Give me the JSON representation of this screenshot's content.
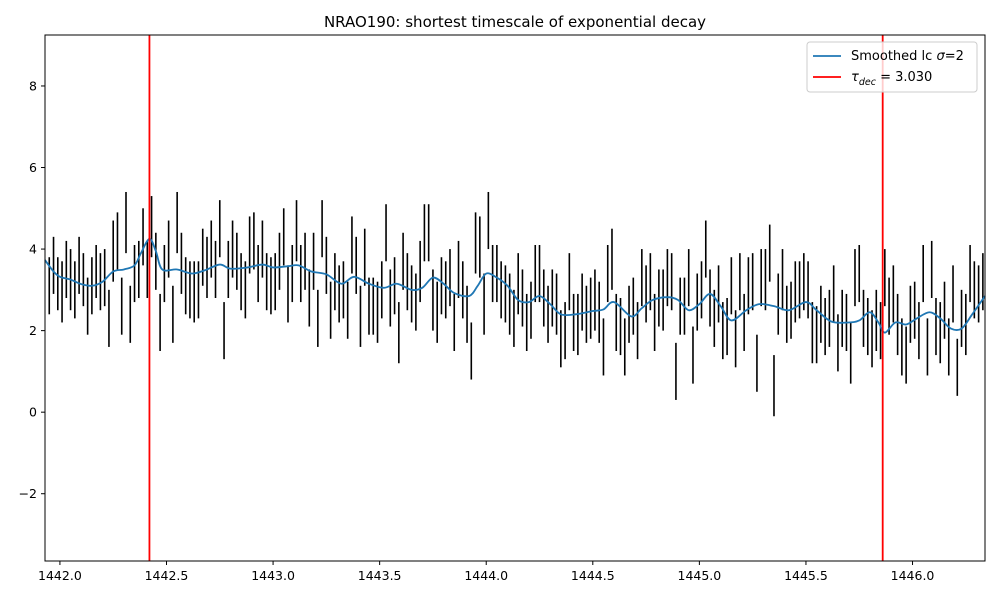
{
  "chart_data": {
    "type": "line",
    "title": "NRAO190: shortest timescale of exponential decay",
    "xlabel": "",
    "ylabel": "",
    "xlim": [
      1441.93,
      1446.34
    ],
    "ylim": [
      -3.65,
      9.25
    ],
    "xticks": [
      1442.0,
      1442.5,
      1443.0,
      1443.5,
      1444.0,
      1444.5,
      1445.0,
      1445.5,
      1446.0
    ],
    "xtick_labels": [
      "1442.0",
      "1442.5",
      "1443.0",
      "1443.5",
      "1444.0",
      "1444.5",
      "1445.0",
      "1445.5",
      "1446.0"
    ],
    "yticks": [
      -2,
      0,
      2,
      4,
      6,
      8
    ],
    "ytick_labels": [
      "−2",
      "0",
      "2",
      "4",
      "6",
      "8"
    ],
    "grid": false,
    "legend_position": "top-right",
    "colors": {
      "smoothed": "#1f77b4",
      "vlines": "#ff0000",
      "errorbars": "#000000"
    },
    "smoothed_series": {
      "name_prefix": "Smoothed lc ",
      "name_symbol": "σ",
      "name_suffix": "=2",
      "points": [
        [
          1441.93,
          3.73
        ],
        [
          1441.97,
          3.45
        ],
        [
          1442.0,
          3.32
        ],
        [
          1442.05,
          3.25
        ],
        [
          1442.1,
          3.14
        ],
        [
          1442.15,
          3.1
        ],
        [
          1442.2,
          3.2
        ],
        [
          1442.25,
          3.45
        ],
        [
          1442.3,
          3.5
        ],
        [
          1442.35,
          3.6
        ],
        [
          1442.38,
          3.9
        ],
        [
          1442.42,
          4.25
        ],
        [
          1442.45,
          3.95
        ],
        [
          1442.48,
          3.5
        ],
        [
          1442.55,
          3.5
        ],
        [
          1442.62,
          3.4
        ],
        [
          1442.68,
          3.48
        ],
        [
          1442.75,
          3.62
        ],
        [
          1442.8,
          3.52
        ],
        [
          1442.88,
          3.55
        ],
        [
          1442.95,
          3.62
        ],
        [
          1443.0,
          3.55
        ],
        [
          1443.07,
          3.58
        ],
        [
          1443.12,
          3.6
        ],
        [
          1443.18,
          3.45
        ],
        [
          1443.25,
          3.38
        ],
        [
          1443.32,
          3.15
        ],
        [
          1443.38,
          3.32
        ],
        [
          1443.45,
          3.15
        ],
        [
          1443.52,
          3.05
        ],
        [
          1443.58,
          3.15
        ],
        [
          1443.65,
          3.0
        ],
        [
          1443.7,
          3.05
        ],
        [
          1443.75,
          3.3
        ],
        [
          1443.8,
          3.15
        ],
        [
          1443.85,
          2.92
        ],
        [
          1443.92,
          2.85
        ],
        [
          1443.96,
          3.1
        ],
        [
          1444.0,
          3.4
        ],
        [
          1444.05,
          3.3
        ],
        [
          1444.1,
          3.1
        ],
        [
          1444.15,
          2.75
        ],
        [
          1444.2,
          2.7
        ],
        [
          1444.25,
          2.85
        ],
        [
          1444.3,
          2.65
        ],
        [
          1444.35,
          2.4
        ],
        [
          1444.42,
          2.4
        ],
        [
          1444.5,
          2.48
        ],
        [
          1444.55,
          2.52
        ],
        [
          1444.6,
          2.7
        ],
        [
          1444.68,
          2.35
        ],
        [
          1444.73,
          2.55
        ],
        [
          1444.78,
          2.75
        ],
        [
          1444.85,
          2.82
        ],
        [
          1444.9,
          2.75
        ],
        [
          1444.95,
          2.5
        ],
        [
          1445.0,
          2.65
        ],
        [
          1445.05,
          2.9
        ],
        [
          1445.1,
          2.6
        ],
        [
          1445.15,
          2.25
        ],
        [
          1445.22,
          2.5
        ],
        [
          1445.28,
          2.65
        ],
        [
          1445.35,
          2.6
        ],
        [
          1445.42,
          2.5
        ],
        [
          1445.5,
          2.7
        ],
        [
          1445.55,
          2.5
        ],
        [
          1445.62,
          2.22
        ],
        [
          1445.7,
          2.2
        ],
        [
          1445.75,
          2.25
        ],
        [
          1445.8,
          2.45
        ],
        [
          1445.84,
          2.2
        ],
        [
          1445.87,
          1.95
        ],
        [
          1445.92,
          2.2
        ],
        [
          1445.97,
          2.15
        ],
        [
          1446.02,
          2.3
        ],
        [
          1446.08,
          2.45
        ],
        [
          1446.13,
          2.3
        ],
        [
          1446.18,
          2.05
        ],
        [
          1446.23,
          2.05
        ],
        [
          1446.28,
          2.4
        ],
        [
          1446.34,
          2.85
        ]
      ]
    },
    "vertical_lines": {
      "name_prefix": "τ",
      "name_sub": "dec",
      "name_suffix": " = 3.030",
      "x": [
        1442.42,
        1445.86
      ]
    },
    "errorbars": [
      [
        1441.95,
        2.4,
        3.8
      ],
      [
        1441.97,
        2.9,
        4.3
      ],
      [
        1441.99,
        2.5,
        3.8
      ],
      [
        1442.01,
        2.2,
        3.7
      ],
      [
        1442.03,
        2.8,
        4.2
      ],
      [
        1442.05,
        2.5,
        4.0
      ],
      [
        1442.07,
        2.3,
        3.7
      ],
      [
        1442.09,
        2.9,
        4.3
      ],
      [
        1442.11,
        2.6,
        3.9
      ],
      [
        1442.13,
        1.9,
        3.3
      ],
      [
        1442.15,
        2.4,
        3.8
      ],
      [
        1442.17,
        2.8,
        4.1
      ],
      [
        1442.19,
        2.5,
        3.9
      ],
      [
        1442.21,
        2.6,
        4.0
      ],
      [
        1442.23,
        1.6,
        3.0
      ],
      [
        1442.25,
        3.2,
        4.7
      ],
      [
        1442.27,
        3.5,
        4.9
      ],
      [
        1442.29,
        1.9,
        3.3
      ],
      [
        1442.31,
        3.9,
        5.4
      ],
      [
        1442.33,
        1.7,
        3.1
      ],
      [
        1442.35,
        2.7,
        4.1
      ],
      [
        1442.37,
        2.8,
        4.2
      ],
      [
        1442.39,
        3.6,
        5.0
      ],
      [
        1442.41,
        2.8,
        4.2
      ],
      [
        1442.43,
        3.8,
        5.3
      ],
      [
        1442.45,
        3.0,
        4.4
      ],
      [
        1442.47,
        1.5,
        2.9
      ],
      [
        1442.49,
        2.7,
        4.1
      ],
      [
        1442.51,
        3.3,
        4.7
      ],
      [
        1442.53,
        1.7,
        3.1
      ],
      [
        1442.55,
        3.9,
        5.4
      ],
      [
        1442.57,
        2.9,
        4.4
      ],
      [
        1442.59,
        2.4,
        3.8
      ],
      [
        1442.61,
        2.3,
        3.7
      ],
      [
        1442.63,
        2.2,
        3.7
      ],
      [
        1442.65,
        2.3,
        3.7
      ],
      [
        1442.67,
        3.1,
        4.5
      ],
      [
        1442.69,
        2.8,
        4.3
      ],
      [
        1442.71,
        3.3,
        4.7
      ],
      [
        1442.73,
        2.8,
        4.2
      ],
      [
        1442.75,
        3.8,
        5.2
      ],
      [
        1442.77,
        1.3,
        2.7
      ],
      [
        1442.79,
        2.8,
        4.2
      ],
      [
        1442.81,
        3.3,
        4.7
      ],
      [
        1442.83,
        3.0,
        4.4
      ],
      [
        1442.85,
        2.5,
        3.9
      ],
      [
        1442.87,
        2.3,
        3.7
      ],
      [
        1442.89,
        3.4,
        4.8
      ],
      [
        1442.91,
        3.5,
        4.9
      ],
      [
        1442.93,
        2.7,
        4.1
      ],
      [
        1442.95,
        3.3,
        4.7
      ],
      [
        1442.97,
        2.5,
        3.9
      ],
      [
        1442.99,
        2.4,
        3.8
      ],
      [
        1443.01,
        2.5,
        3.9
      ],
      [
        1443.03,
        3.0,
        4.4
      ],
      [
        1443.05,
        3.6,
        5.0
      ],
      [
        1443.07,
        2.2,
        3.6
      ],
      [
        1443.09,
        2.7,
        4.1
      ],
      [
        1443.11,
        3.7,
        5.2
      ],
      [
        1443.13,
        2.7,
        4.1
      ],
      [
        1443.15,
        3.0,
        4.4
      ],
      [
        1443.17,
        2.1,
        3.5
      ],
      [
        1443.19,
        3.0,
        4.4
      ],
      [
        1443.21,
        1.6,
        3.0
      ],
      [
        1443.23,
        3.8,
        5.2
      ],
      [
        1443.25,
        2.9,
        4.3
      ],
      [
        1443.27,
        1.8,
        3.2
      ],
      [
        1443.29,
        2.5,
        3.9
      ],
      [
        1443.31,
        2.2,
        3.6
      ],
      [
        1443.33,
        2.3,
        3.7
      ],
      [
        1443.35,
        1.8,
        3.2
      ],
      [
        1443.37,
        3.4,
        4.8
      ],
      [
        1443.39,
        2.9,
        4.3
      ],
      [
        1443.41,
        1.6,
        3.1
      ],
      [
        1443.43,
        3.1,
        4.5
      ],
      [
        1443.45,
        1.9,
        3.3
      ],
      [
        1443.47,
        1.9,
        3.3
      ],
      [
        1443.49,
        1.7,
        3.2
      ],
      [
        1443.51,
        2.3,
        3.7
      ],
      [
        1443.53,
        3.7,
        5.1
      ],
      [
        1443.55,
        2.1,
        3.5
      ],
      [
        1443.57,
        2.4,
        3.8
      ],
      [
        1443.59,
        1.2,
        2.7
      ],
      [
        1443.61,
        3.0,
        4.4
      ],
      [
        1443.63,
        2.5,
        3.9
      ],
      [
        1443.65,
        2.2,
        3.6
      ],
      [
        1443.67,
        2.0,
        3.4
      ],
      [
        1443.69,
        2.7,
        4.2
      ],
      [
        1443.71,
        3.7,
        5.1
      ],
      [
        1443.73,
        3.7,
        5.1
      ],
      [
        1443.75,
        2.0,
        3.5
      ],
      [
        1443.77,
        1.7,
        3.2
      ],
      [
        1443.79,
        2.4,
        3.8
      ],
      [
        1443.81,
        2.3,
        3.7
      ],
      [
        1443.83,
        2.6,
        4.0
      ],
      [
        1443.85,
        1.5,
        2.9
      ],
      [
        1443.87,
        2.8,
        4.2
      ],
      [
        1443.89,
        2.3,
        3.7
      ],
      [
        1443.91,
        1.7,
        3.1
      ],
      [
        1443.93,
        0.8,
        2.2
      ],
      [
        1443.95,
        3.4,
        4.9
      ],
      [
        1443.97,
        3.3,
        4.8
      ],
      [
        1443.99,
        1.9,
        3.4
      ],
      [
        1444.01,
        4.0,
        5.4
      ],
      [
        1444.03,
        2.7,
        4.1
      ],
      [
        1444.05,
        2.7,
        4.1
      ],
      [
        1444.07,
        2.3,
        3.7
      ],
      [
        1444.09,
        2.2,
        3.6
      ],
      [
        1444.11,
        1.9,
        3.4
      ],
      [
        1444.13,
        1.6,
        3.0
      ],
      [
        1444.15,
        2.4,
        3.9
      ],
      [
        1444.17,
        2.1,
        3.5
      ],
      [
        1444.19,
        1.5,
        2.9
      ],
      [
        1444.21,
        1.8,
        3.2
      ],
      [
        1444.23,
        2.7,
        4.1
      ],
      [
        1444.25,
        2.7,
        4.1
      ],
      [
        1444.27,
        2.1,
        3.5
      ],
      [
        1444.29,
        1.7,
        3.1
      ],
      [
        1444.31,
        2.1,
        3.5
      ],
      [
        1444.33,
        1.9,
        3.4
      ],
      [
        1444.35,
        1.1,
        2.5
      ],
      [
        1444.37,
        1.3,
        2.7
      ],
      [
        1444.39,
        2.5,
        3.9
      ],
      [
        1444.41,
        1.5,
        2.9
      ],
      [
        1444.43,
        1.4,
        2.9
      ],
      [
        1444.45,
        2.0,
        3.4
      ],
      [
        1444.47,
        1.7,
        3.1
      ],
      [
        1444.49,
        1.8,
        3.3
      ],
      [
        1444.51,
        2.0,
        3.5
      ],
      [
        1444.53,
        1.7,
        3.2
      ],
      [
        1444.55,
        0.9,
        2.3
      ],
      [
        1444.57,
        2.7,
        4.1
      ],
      [
        1444.59,
        3.0,
        4.5
      ],
      [
        1444.61,
        1.5,
        2.9
      ],
      [
        1444.63,
        1.4,
        2.8
      ],
      [
        1444.65,
        0.9,
        2.3
      ],
      [
        1444.67,
        1.7,
        3.1
      ],
      [
        1444.69,
        1.9,
        3.3
      ],
      [
        1444.71,
        1.3,
        2.7
      ],
      [
        1444.73,
        2.6,
        4.0
      ],
      [
        1444.75,
        2.2,
        3.6
      ],
      [
        1444.77,
        2.5,
        3.9
      ],
      [
        1444.79,
        1.5,
        2.9
      ],
      [
        1444.81,
        2.1,
        3.5
      ],
      [
        1444.83,
        2.0,
        3.5
      ],
      [
        1444.85,
        2.6,
        4.0
      ],
      [
        1444.87,
        2.5,
        3.9
      ],
      [
        1444.89,
        0.3,
        1.7
      ],
      [
        1444.91,
        1.9,
        3.3
      ],
      [
        1444.93,
        1.9,
        3.3
      ],
      [
        1444.95,
        2.6,
        4.0
      ],
      [
        1444.97,
        0.7,
        2.1
      ],
      [
        1444.99,
        2.0,
        3.4
      ],
      [
        1445.01,
        2.3,
        3.7
      ],
      [
        1445.03,
        3.3,
        4.7
      ],
      [
        1445.05,
        2.1,
        3.5
      ],
      [
        1445.07,
        1.6,
        3.0
      ],
      [
        1445.09,
        2.2,
        3.6
      ],
      [
        1445.11,
        1.3,
        2.7
      ],
      [
        1445.13,
        1.4,
        2.8
      ],
      [
        1445.15,
        2.4,
        3.8
      ],
      [
        1445.17,
        1.1,
        2.5
      ],
      [
        1445.19,
        2.5,
        3.9
      ],
      [
        1445.21,
        1.5,
        2.9
      ],
      [
        1445.23,
        2.4,
        3.8
      ],
      [
        1445.25,
        2.5,
        3.9
      ],
      [
        1445.27,
        0.5,
        1.9
      ],
      [
        1445.29,
        2.6,
        4.0
      ],
      [
        1445.31,
        2.5,
        4.0
      ],
      [
        1445.33,
        3.2,
        4.6
      ],
      [
        1445.35,
        -0.1,
        1.4
      ],
      [
        1445.37,
        1.9,
        3.4
      ],
      [
        1445.39,
        2.5,
        4.0
      ],
      [
        1445.41,
        1.7,
        3.1
      ],
      [
        1445.43,
        1.8,
        3.2
      ],
      [
        1445.45,
        2.2,
        3.7
      ],
      [
        1445.47,
        2.3,
        3.7
      ],
      [
        1445.49,
        2.5,
        3.9
      ],
      [
        1445.51,
        2.3,
        3.7
      ],
      [
        1445.53,
        1.2,
        2.7
      ],
      [
        1445.55,
        1.2,
        2.6
      ],
      [
        1445.57,
        1.7,
        3.1
      ],
      [
        1445.59,
        1.4,
        2.8
      ],
      [
        1445.61,
        1.6,
        3.0
      ],
      [
        1445.63,
        2.2,
        3.6
      ],
      [
        1445.65,
        1.0,
        2.4
      ],
      [
        1445.67,
        1.6,
        3.0
      ],
      [
        1445.69,
        1.5,
        2.9
      ],
      [
        1445.71,
        0.7,
        2.2
      ],
      [
        1445.73,
        2.6,
        4.0
      ],
      [
        1445.75,
        2.7,
        4.1
      ],
      [
        1445.77,
        1.6,
        3.0
      ],
      [
        1445.79,
        1.4,
        2.8
      ],
      [
        1445.81,
        1.1,
        2.5
      ],
      [
        1445.83,
        1.5,
        3.0
      ],
      [
        1445.85,
        1.3,
        2.7
      ],
      [
        1445.87,
        2.6,
        4.0
      ],
      [
        1445.89,
        1.9,
        3.3
      ],
      [
        1445.91,
        2.2,
        3.6
      ],
      [
        1445.93,
        1.4,
        2.9
      ],
      [
        1445.95,
        0.9,
        2.3
      ],
      [
        1445.97,
        0.7,
        2.1
      ],
      [
        1445.99,
        1.7,
        3.1
      ],
      [
        1446.01,
        1.8,
        3.2
      ],
      [
        1446.03,
        1.3,
        2.7
      ],
      [
        1446.05,
        2.7,
        4.1
      ],
      [
        1446.07,
        0.9,
        2.3
      ],
      [
        1446.09,
        2.8,
        4.2
      ],
      [
        1446.11,
        1.4,
        2.8
      ],
      [
        1446.13,
        1.2,
        2.7
      ],
      [
        1446.15,
        1.8,
        3.2
      ],
      [
        1446.17,
        0.9,
        2.3
      ],
      [
        1446.19,
        2.2,
        3.6
      ],
      [
        1446.21,
        0.4,
        1.8
      ],
      [
        1446.23,
        1.6,
        3.0
      ],
      [
        1446.25,
        1.4,
        2.9
      ],
      [
        1446.27,
        2.7,
        4.1
      ],
      [
        1446.29,
        2.3,
        3.7
      ],
      [
        1446.31,
        2.2,
        3.6
      ],
      [
        1446.33,
        2.5,
        3.9
      ]
    ]
  }
}
